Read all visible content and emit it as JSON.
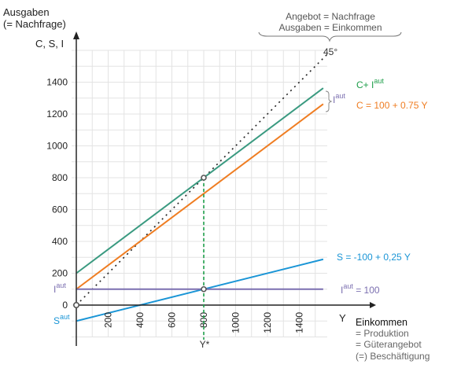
{
  "chart_data": {
    "type": "line",
    "title": "",
    "ylabel_lines": [
      "Ausgaben",
      "(= Nachfrage)"
    ],
    "y_axis_symbol": "C, S, I",
    "x_axis_symbol": "Y",
    "xlabel_lines": [
      "Einkommen",
      "= Produktion",
      "= Güterangebot",
      "(=) Beschäftigung"
    ],
    "xlim": [
      0,
      1575
    ],
    "ylim": [
      -200,
      1600
    ],
    "grid": true,
    "grid_step": 100,
    "x_ticks": [
      200,
      400,
      600,
      800,
      1000,
      1200,
      1400
    ],
    "x_tick_labels": [
      "200",
      "400",
      "600",
      "800",
      "1000",
      "1200",
      "1400"
    ],
    "y_ticks": [
      0,
      200,
      400,
      600,
      800,
      1000,
      1200,
      1400
    ],
    "y_tick_labels": [
      "0",
      "200",
      "400",
      "600",
      "800",
      "1000",
      "1200",
      "1400"
    ],
    "series": [
      {
        "name": "45°",
        "intercept": 0,
        "slope": 1,
        "x_range": [
          0,
          1575
        ],
        "color": "#222222",
        "style": "dotted"
      },
      {
        "name": "C+ I",
        "superscript": "aut",
        "intercept": 200,
        "slope": 0.75,
        "x_range": [
          0,
          1550
        ],
        "color": "#3a9a80",
        "style": "solid"
      },
      {
        "name": "C = 100 + 0.75 Y",
        "intercept": 100,
        "slope": 0.75,
        "x_range": [
          0,
          1550
        ],
        "color": "#ef7d22",
        "style": "solid"
      },
      {
        "name": "S = -100 + 0,25 Y",
        "intercept": -100,
        "slope": 0.25,
        "x_range": [
          0,
          1550
        ],
        "color": "#1a95d6",
        "style": "solid"
      },
      {
        "name": "I",
        "superscript": "aut",
        "suffix": " = 100",
        "intercept": 100,
        "slope": 0,
        "x_range": [
          0,
          1550
        ],
        "color": "#7b6fb0",
        "style": "solid"
      }
    ],
    "equilibrium": {
      "x": 800,
      "y_total": 800,
      "y_saving": 100,
      "label": "Y*",
      "color": "#1e9e4a"
    },
    "axis_annotations": {
      "i_aut_left": {
        "text": "I",
        "sup": "aut",
        "value": 100,
        "color": "#7b6fb0"
      },
      "s_aut_left": {
        "text": "S",
        "sup": "aut",
        "value": -100,
        "color": "#1a95d6"
      },
      "i_aut_bracket": {
        "text": "I",
        "sup": "aut",
        "color": "#7b6fb0"
      },
      "label_45": "45°"
    },
    "brace_annotation": [
      "Angebot = Nachfrage",
      "Ausgaben = Einkommen"
    ]
  },
  "colors": {
    "axis": "#333333",
    "grid": "#e3e3e3",
    "text": "#222222",
    "muted_text": "#666666"
  }
}
